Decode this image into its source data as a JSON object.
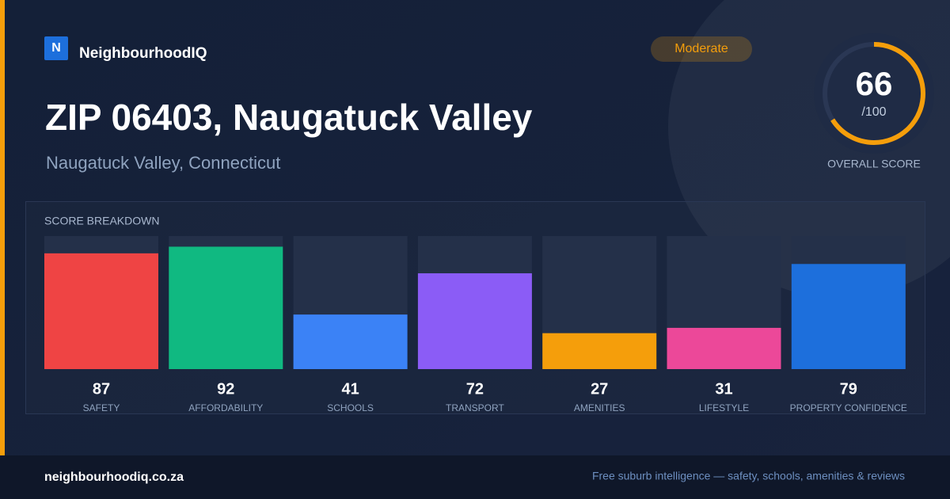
{
  "header": {
    "logo_letter": "N",
    "brand": "NeighbourhoodIQ",
    "title": "ZIP 06403, Naugatuck Valley",
    "subtitle": "Naugatuck Valley, Connecticut",
    "badge": "Moderate"
  },
  "score": {
    "value": 66,
    "max": 100,
    "max_label": "/100",
    "label": "OVERALL SCORE",
    "color": "#f59e0b"
  },
  "chart_data": {
    "type": "bar",
    "title": "SCORE BREAKDOWN",
    "categories": [
      "SAFETY",
      "AFFORDABILITY",
      "SCHOOLS",
      "TRANSPORT",
      "AMENITIES",
      "LIFESTYLE",
      "PROPERTY CONFIDENCE"
    ],
    "values": [
      87,
      92,
      41,
      72,
      27,
      31,
      79
    ],
    "colors": [
      "#ef4444",
      "#10b981",
      "#3b82f6",
      "#8b5cf6",
      "#f59e0b",
      "#ec4899",
      "#1d6fdc"
    ],
    "ylim": [
      0,
      100
    ]
  },
  "footer": {
    "site": "neighbourhoodiq.co.za",
    "tagline": "Free suburb intelligence — safety, schools, amenities & reviews"
  }
}
